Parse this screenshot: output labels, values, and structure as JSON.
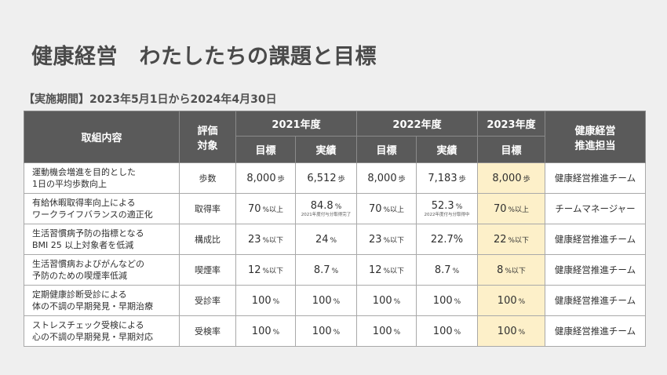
{
  "title": "健康経営　わたしたちの課題と目標",
  "period": "【実施期間】2023年5月1日から2024年4月30日",
  "headers": {
    "content": "取組内容",
    "eval_line1": "評価",
    "eval_line2": "対象",
    "year2021": "2021年度",
    "year2022": "2022年度",
    "year2023": "2023年度",
    "target": "目標",
    "actual": "実績",
    "owner_line1": "健康経営",
    "owner_line2": "推進担当"
  },
  "rows": [
    {
      "content_line1": "運動機会増進を目的とした",
      "content_line2": "1日の平均歩数向上",
      "eval": "歩数",
      "t2021_num": "8,000",
      "t2021_unit": "歩",
      "a2021_num": "6,512",
      "a2021_unit": "歩",
      "a2021_note": "",
      "t2022_num": "8,000",
      "t2022_unit": "歩",
      "a2022_num": "7,183",
      "a2022_unit": "歩",
      "a2022_note": "",
      "t2023_num": "8,000",
      "t2023_unit": "歩",
      "owner": "健康経営推進チーム"
    },
    {
      "content_line1": "有給休暇取得率向上による",
      "content_line2": "ワークライフバランスの適正化",
      "eval": "取得率",
      "t2021_num": "70",
      "t2021_unit": "%以上",
      "a2021_num": "84.8",
      "a2021_unit": "%",
      "a2021_note": "2021年度付与分取得完了",
      "t2022_num": "70",
      "t2022_unit": "%以上",
      "a2022_num": "52.3",
      "a2022_unit": "%",
      "a2022_note": "2022年度付与分取得中",
      "t2023_num": "70",
      "t2023_unit": "%以上",
      "owner": "チームマネージャー"
    },
    {
      "content_line1": "生活習慣病予防の指標となる",
      "content_line2": "BMI 25 以上対象者を低減",
      "eval": "構成比",
      "t2021_num": "23",
      "t2021_unit": "%以下",
      "a2021_num": "24",
      "a2021_unit": "%",
      "a2021_note": "",
      "t2022_num": "23",
      "t2022_unit": "%以下",
      "a2022_num": "22.7%",
      "a2022_unit": "",
      "a2022_note": "",
      "t2023_num": "22",
      "t2023_unit": "%以下",
      "owner": "健康経営推進チーム"
    },
    {
      "content_line1": "生活習慣病およびがんなどの",
      "content_line2": "予防のための喫煙率低減",
      "eval": "喫煙率",
      "t2021_num": "12",
      "t2021_unit": "%以下",
      "a2021_num": "8.7",
      "a2021_unit": "%",
      "a2021_note": "",
      "t2022_num": "12",
      "t2022_unit": "%以下",
      "a2022_num": "8.7",
      "a2022_unit": "%",
      "a2022_note": "",
      "t2023_num": "8",
      "t2023_unit": "%以下",
      "owner": "健康経営推進チーム"
    },
    {
      "content_line1": "定期健康診断受診による",
      "content_line2": "体の不調の早期発見・早期治療",
      "eval": "受診率",
      "t2021_num": "100",
      "t2021_unit": "%",
      "a2021_num": "100",
      "a2021_unit": "%",
      "a2021_note": "",
      "t2022_num": "100",
      "t2022_unit": "%",
      "a2022_num": "100",
      "a2022_unit": "%",
      "a2022_note": "",
      "t2023_num": "100",
      "t2023_unit": "%",
      "owner": "健康経営推進チーム"
    },
    {
      "content_line1": "ストレスチェック受検による",
      "content_line2": "心の不調の早期発見・早期対応",
      "eval": "受検率",
      "t2021_num": "100",
      "t2021_unit": "%",
      "a2021_num": "100",
      "a2021_unit": "%",
      "a2021_note": "",
      "t2022_num": "100",
      "t2022_unit": "%",
      "a2022_num": "100",
      "a2022_unit": "%",
      "a2022_note": "",
      "t2023_num": "100",
      "t2023_unit": "%",
      "owner": "健康経営推進チーム"
    }
  ],
  "colors": {
    "header_bg": "#5a5a5a",
    "highlight_bg": "#fdf0c9",
    "page_bg": "#efefef"
  }
}
